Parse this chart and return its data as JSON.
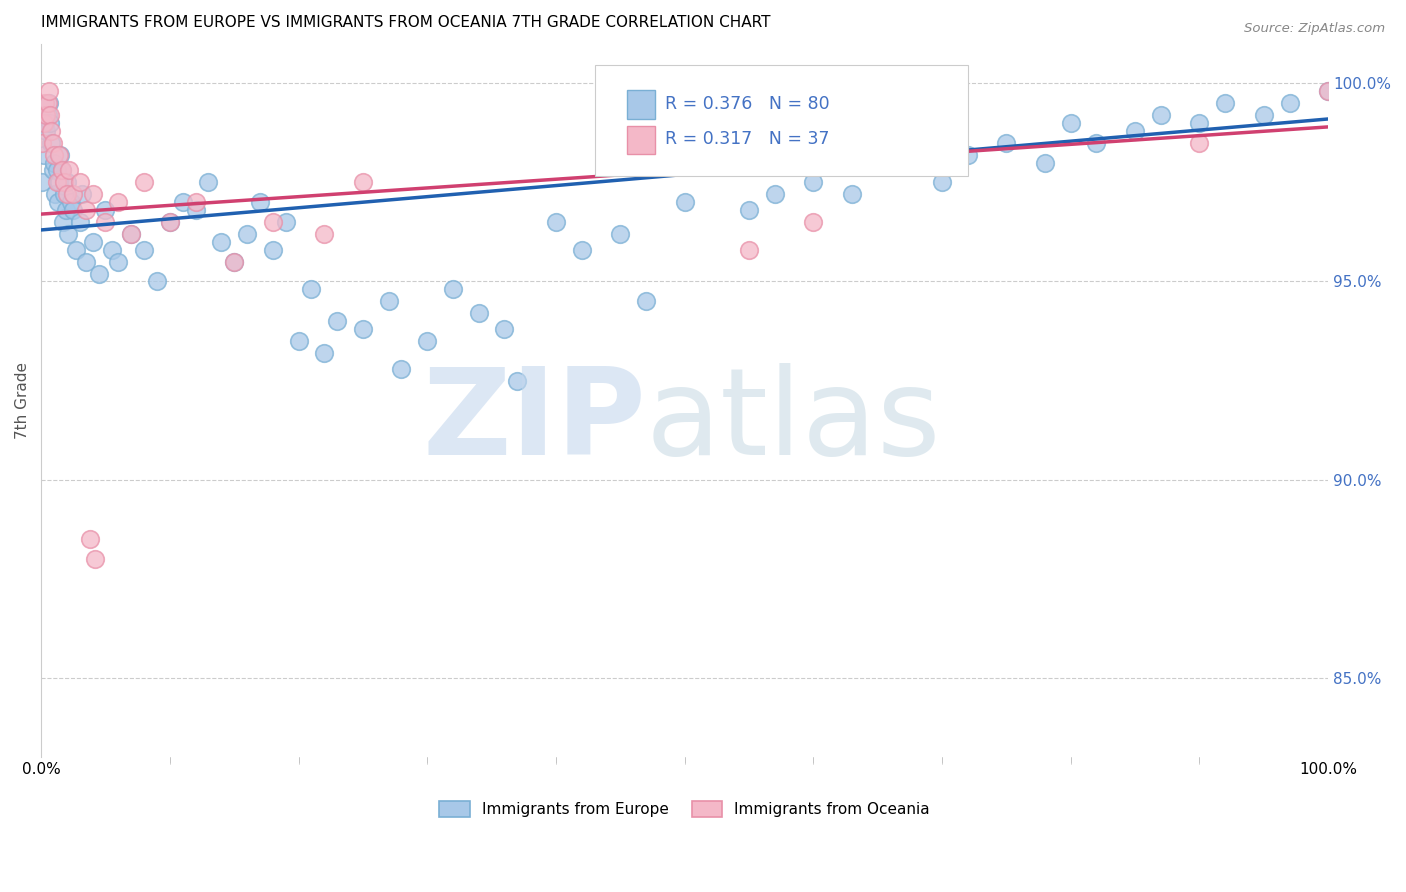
{
  "title": "IMMIGRANTS FROM EUROPE VS IMMIGRANTS FROM OCEANIA 7TH GRADE CORRELATION CHART",
  "source": "Source: ZipAtlas.com",
  "ylabel": "7th Grade",
  "legend_blue_label": "Immigrants from Europe",
  "legend_pink_label": "Immigrants from Oceania",
  "R_blue": 0.376,
  "N_blue": 80,
  "R_pink": 0.317,
  "N_pink": 37,
  "blue_color": "#a8c8e8",
  "blue_edge_color": "#7aafd4",
  "pink_color": "#f4b8c8",
  "pink_edge_color": "#e890a8",
  "blue_line_color": "#2060b0",
  "pink_line_color": "#d04070",
  "grid_color": "#cccccc",
  "xlim": [
    0,
    100
  ],
  "ylim": [
    83.0,
    101.0
  ],
  "right_yticks": [
    85.0,
    90.0,
    95.0,
    100.0
  ],
  "right_ytick_labels": [
    "85.0%",
    "90.0%",
    "95.0%",
    "100.0%"
  ],
  "blue_intercept": 96.3,
  "blue_slope": 0.028,
  "pink_intercept": 96.7,
  "pink_slope": 0.022,
  "blue_x": [
    0.1,
    0.2,
    0.3,
    0.4,
    0.5,
    0.6,
    0.7,
    0.8,
    0.9,
    1.0,
    1.1,
    1.2,
    1.3,
    1.4,
    1.5,
    1.6,
    1.7,
    1.8,
    1.9,
    2.0,
    2.1,
    2.3,
    2.5,
    2.7,
    3.0,
    3.2,
    3.5,
    4.0,
    4.5,
    5.0,
    5.5,
    6.0,
    7.0,
    8.0,
    9.0,
    10.0,
    11.0,
    12.0,
    13.0,
    14.0,
    15.0,
    16.0,
    17.0,
    18.0,
    19.0,
    20.0,
    21.0,
    22.0,
    23.0,
    25.0,
    27.0,
    28.0,
    30.0,
    32.0,
    34.0,
    36.0,
    37.0,
    40.0,
    42.0,
    45.0,
    47.0,
    50.0,
    55.0,
    57.0,
    60.0,
    63.0,
    65.0,
    70.0,
    72.0,
    75.0,
    78.0,
    80.0,
    82.0,
    85.0,
    87.0,
    90.0,
    92.0,
    95.0,
    97.0,
    100.0
  ],
  "blue_y": [
    97.5,
    98.2,
    99.0,
    98.8,
    99.2,
    99.5,
    99.0,
    98.5,
    97.8,
    98.0,
    97.2,
    97.8,
    97.0,
    97.5,
    98.2,
    97.8,
    96.5,
    97.2,
    96.8,
    97.5,
    96.2,
    97.0,
    96.8,
    95.8,
    96.5,
    97.2,
    95.5,
    96.0,
    95.2,
    96.8,
    95.8,
    95.5,
    96.2,
    95.8,
    95.0,
    96.5,
    97.0,
    96.8,
    97.5,
    96.0,
    95.5,
    96.2,
    97.0,
    95.8,
    96.5,
    93.5,
    94.8,
    93.2,
    94.0,
    93.8,
    94.5,
    92.8,
    93.5,
    94.8,
    94.2,
    93.8,
    92.5,
    96.5,
    95.8,
    96.2,
    94.5,
    97.0,
    96.8,
    97.2,
    97.5,
    97.2,
    98.0,
    97.5,
    98.2,
    98.5,
    98.0,
    99.0,
    98.5,
    98.8,
    99.2,
    99.0,
    99.5,
    99.2,
    99.5,
    99.8
  ],
  "pink_x": [
    0.1,
    0.2,
    0.3,
    0.4,
    0.5,
    0.6,
    0.7,
    0.8,
    0.9,
    1.0,
    1.2,
    1.4,
    1.6,
    1.8,
    2.0,
    2.2,
    2.5,
    3.0,
    3.5,
    4.0,
    5.0,
    6.0,
    7.0,
    8.0,
    10.0,
    12.0,
    15.0,
    18.0,
    22.0,
    25.0,
    3.8,
    4.2,
    55.0,
    60.0,
    70.0,
    90.0,
    100.0
  ],
  "pink_y": [
    98.5,
    99.0,
    99.5,
    99.2,
    99.5,
    99.8,
    99.2,
    98.8,
    98.5,
    98.2,
    97.5,
    98.2,
    97.8,
    97.5,
    97.2,
    97.8,
    97.2,
    97.5,
    96.8,
    97.2,
    96.5,
    97.0,
    96.2,
    97.5,
    96.5,
    97.0,
    95.5,
    96.5,
    96.2,
    97.5,
    88.5,
    88.0,
    95.8,
    96.5,
    99.0,
    98.5,
    99.8
  ]
}
